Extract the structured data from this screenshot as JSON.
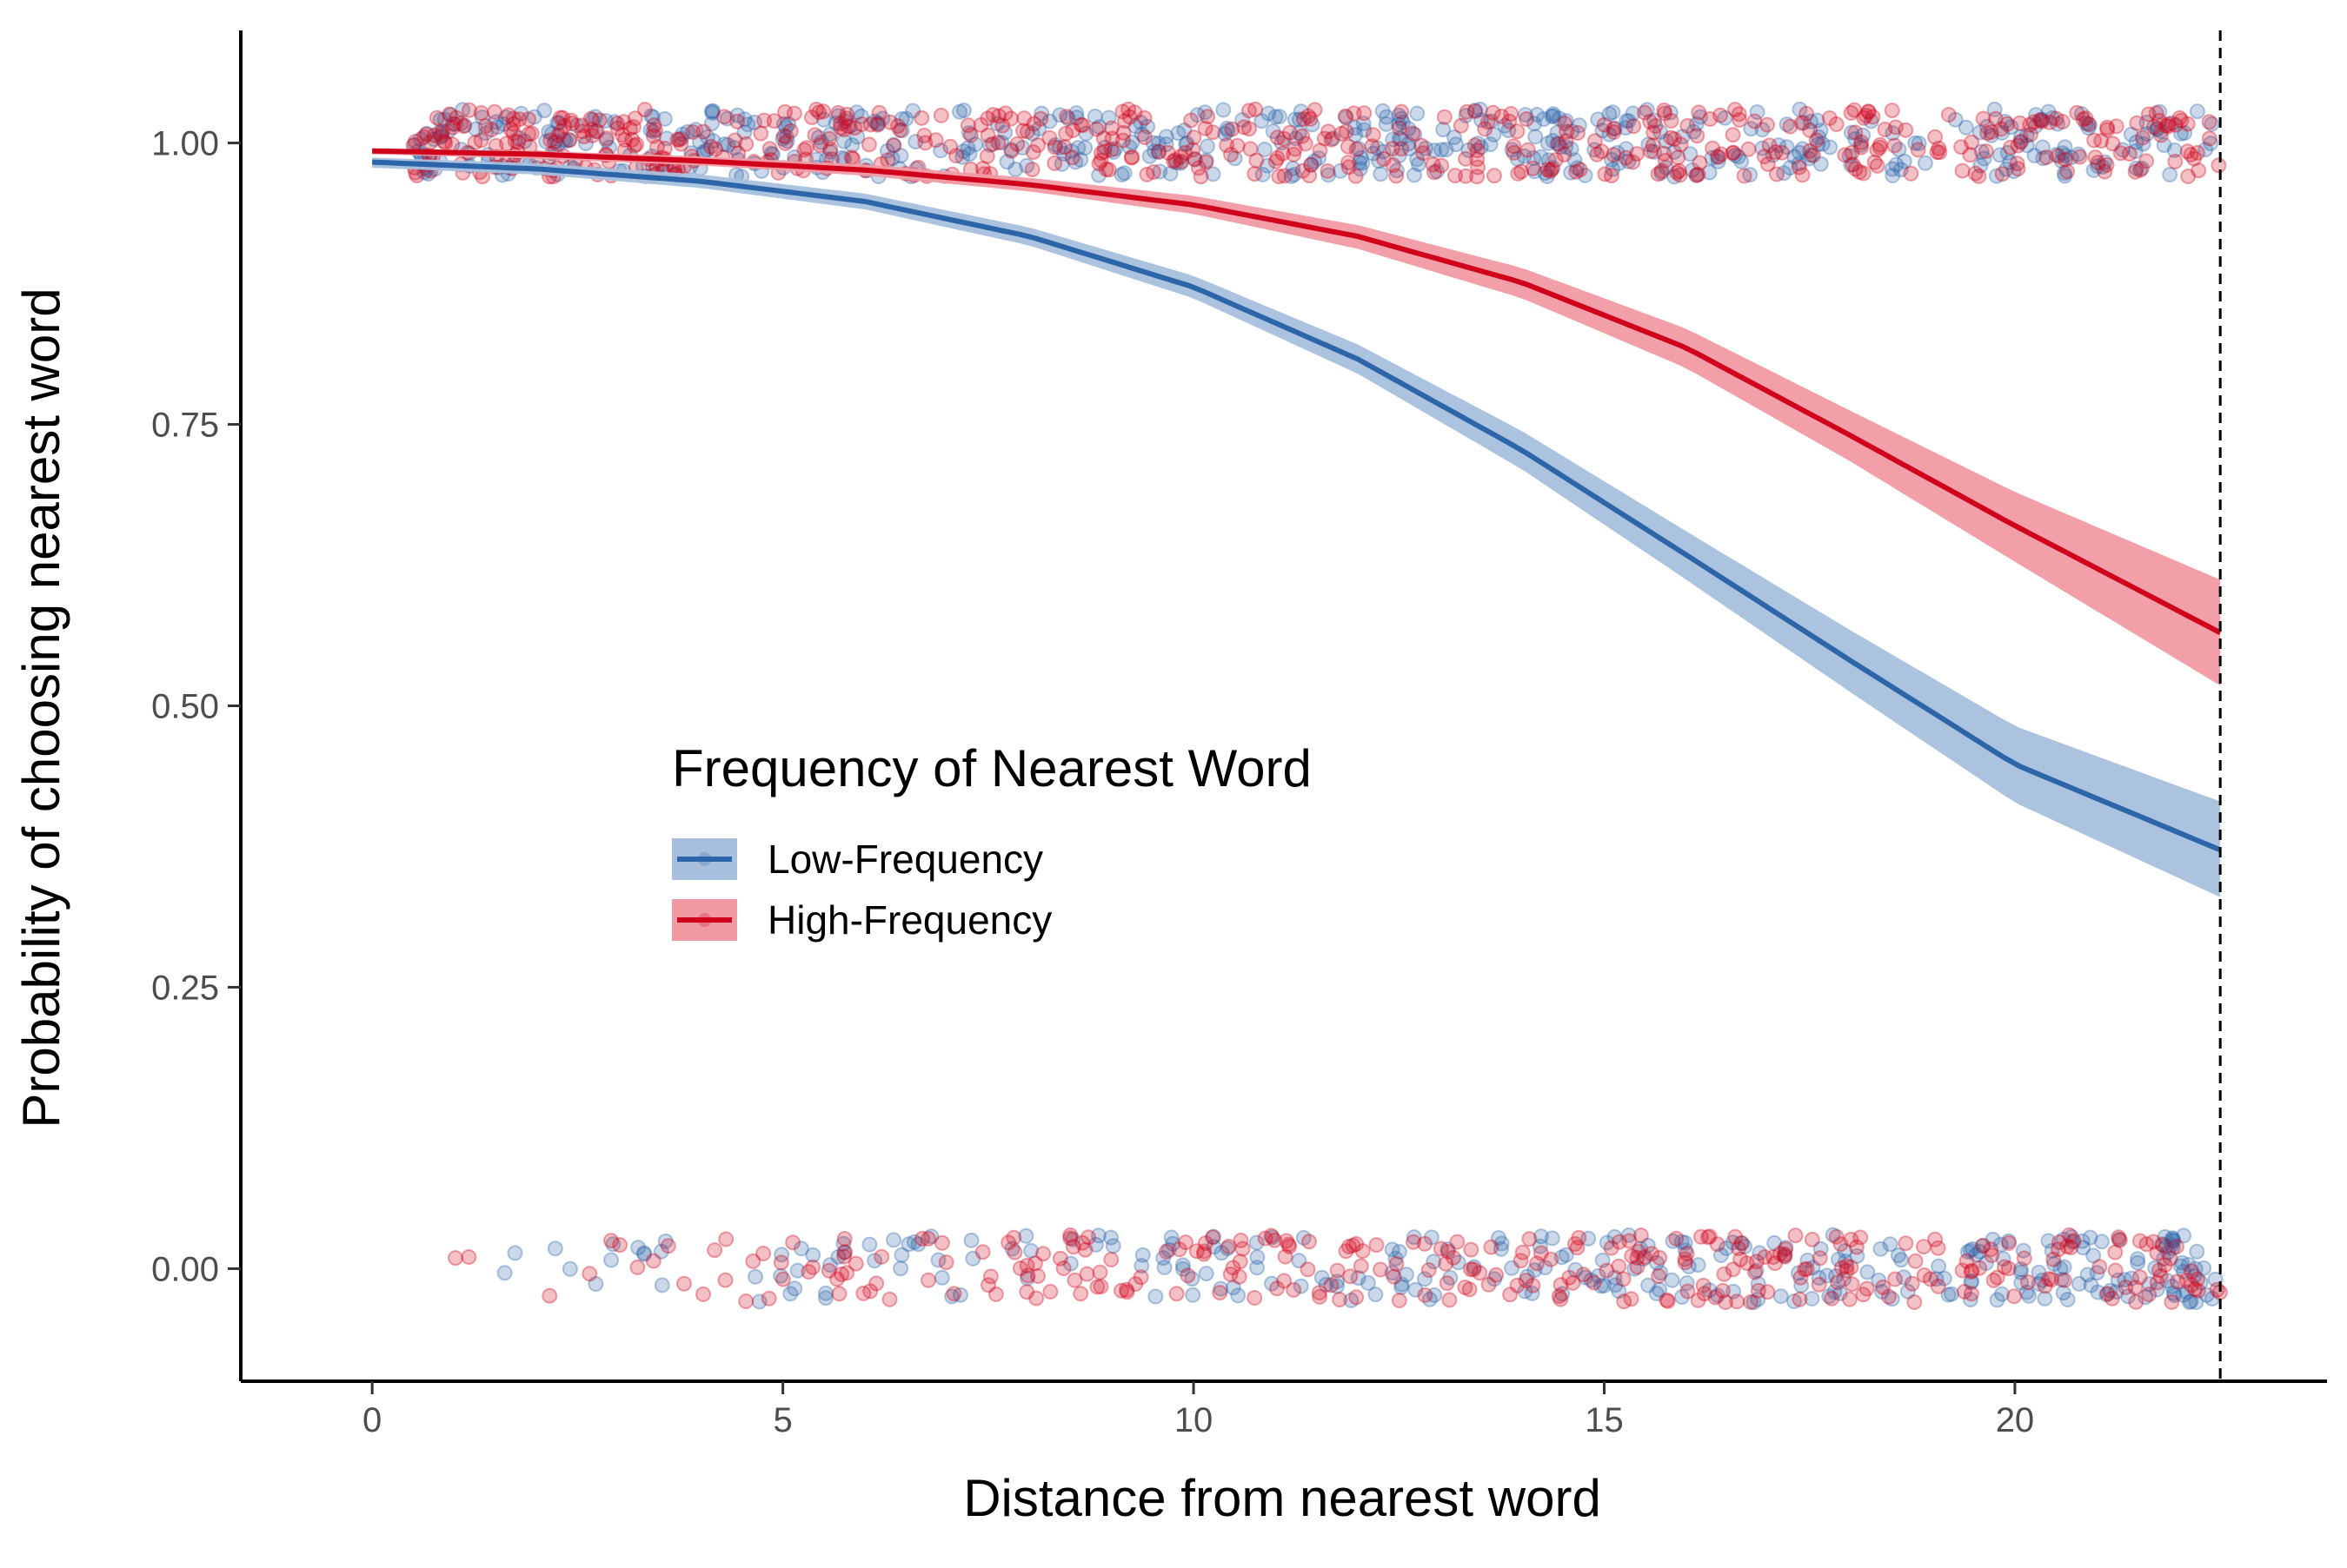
{
  "chart_data": {
    "type": "line",
    "title": "",
    "xlabel": "Distance from nearest word",
    "ylabel": "Probability of choosing nearest word",
    "xlim": [
      -1.6,
      23.8
    ],
    "ylim": [
      -0.1,
      1.1
    ],
    "x_ticks": [
      0,
      5,
      10,
      15,
      20
    ],
    "y_ticks": [
      0.0,
      0.25,
      0.5,
      0.75,
      1.0
    ],
    "x_tick_labels": [
      "0",
      "5",
      "10",
      "15",
      "20"
    ],
    "y_tick_labels": [
      "0.00",
      "0.25",
      "0.50",
      "0.75",
      "1.00"
    ],
    "grid": false,
    "reference_line": {
      "x": 22.5,
      "style": "dashed",
      "color": "#000000"
    },
    "legend": {
      "title": "Frequency of Nearest Word",
      "placement": "center-left",
      "entries": [
        "Low-Frequency",
        "High-Frequency"
      ]
    },
    "series": [
      {
        "name": "Low-Frequency",
        "color": "#2c65a8",
        "ribbon_color": "#a8c0de",
        "x": [
          0,
          2,
          4,
          6,
          8,
          10,
          12,
          14,
          16,
          18,
          20,
          22.5
        ],
        "y": [
          0.983,
          0.977,
          0.966,
          0.948,
          0.917,
          0.872,
          0.808,
          0.727,
          0.634,
          0.54,
          0.448,
          0.372
        ],
        "lower": [
          0.978,
          0.972,
          0.96,
          0.941,
          0.909,
          0.862,
          0.795,
          0.71,
          0.612,
          0.512,
          0.414,
          0.33
        ],
        "upper": [
          0.987,
          0.982,
          0.972,
          0.955,
          0.925,
          0.882,
          0.821,
          0.744,
          0.655,
          0.567,
          0.482,
          0.415
        ]
      },
      {
        "name": "High-Frequency",
        "color": "#d0021b",
        "ribbon_color": "#f19aa4",
        "x": [
          0,
          2,
          4,
          6,
          8,
          10,
          12,
          14,
          16,
          18,
          20,
          22.5
        ],
        "y": [
          0.993,
          0.99,
          0.984,
          0.976,
          0.963,
          0.945,
          0.917,
          0.876,
          0.818,
          0.74,
          0.66,
          0.565
        ],
        "lower": [
          0.99,
          0.986,
          0.98,
          0.971,
          0.957,
          0.937,
          0.906,
          0.862,
          0.8,
          0.717,
          0.628,
          0.518
        ],
        "upper": [
          0.995,
          0.993,
          0.988,
          0.981,
          0.969,
          0.953,
          0.927,
          0.889,
          0.835,
          0.762,
          0.69,
          0.612
        ]
      }
    ],
    "jitter_points": {
      "description_values": "binary outcomes 0 and 1 jittered vertically",
      "opacity": 0.25,
      "y_levels": [
        0,
        1
      ],
      "y_jitter": 0.03,
      "groups": [
        {
          "series": "Low-Frequency",
          "y": 1,
          "x_range": [
            0.5,
            22.5
          ],
          "count": 520
        },
        {
          "series": "High-Frequency",
          "y": 1,
          "x_range": [
            0.5,
            22.5
          ],
          "count": 560
        },
        {
          "series": "Low-Frequency",
          "y": 0,
          "x_range": [
            0.5,
            22.5
          ],
          "count": 300
        },
        {
          "series": "High-Frequency",
          "y": 0,
          "x_range": [
            0.5,
            22.5
          ],
          "count": 320
        }
      ]
    }
  }
}
